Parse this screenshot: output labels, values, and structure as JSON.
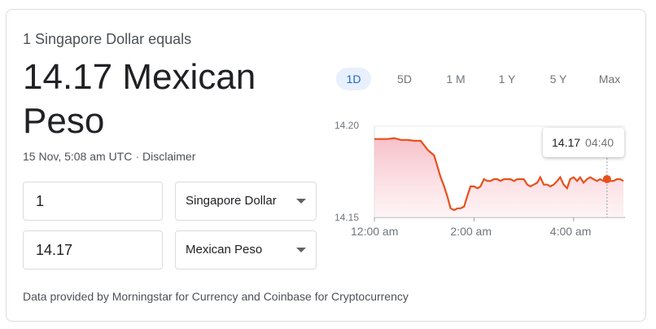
{
  "header": {
    "equals_text": "1 Singapore Dollar equals",
    "result_text": "14.17 Mexican Peso",
    "timestamp": "15 Nov, 5:08 am UTC",
    "disclaimer": "Disclaimer"
  },
  "converter": {
    "from_amount": "1",
    "from_currency": "Singapore Dollar",
    "to_amount": "14.17",
    "to_currency": "Mexican Peso"
  },
  "footer": {
    "text": "Data provided by Morningstar for Currency and Coinbase for Cryptocurrency"
  },
  "ranges": [
    {
      "label": "1D",
      "active": true
    },
    {
      "label": "5D",
      "active": false
    },
    {
      "label": "1 M",
      "active": false
    },
    {
      "label": "1 Y",
      "active": false
    },
    {
      "label": "5 Y",
      "active": false
    },
    {
      "label": "Max",
      "active": false
    }
  ],
  "tooltip": {
    "value": "14.17",
    "time": "04:40"
  },
  "colors": {
    "line": "#e8501b",
    "fill_top": "#f6b9c3",
    "fill_bottom": "#fdecef",
    "active_tab_bg": "#e8f0fe",
    "active_tab_text": "#1967d2"
  },
  "chart_data": {
    "type": "area",
    "ylim": [
      14.15,
      14.2
    ],
    "yticks": [
      "14.20",
      "14.15"
    ],
    "xticks": [
      "12:00 am",
      "2:00 am",
      "4:00 am"
    ],
    "x_hours": [
      0.0,
      0.13,
      0.27,
      0.4,
      0.53,
      0.67,
      0.8,
      0.93,
      1.07,
      1.2,
      1.33,
      1.4,
      1.47,
      1.53,
      1.6,
      1.67,
      1.73,
      1.8,
      1.87,
      1.93,
      2.0,
      2.07,
      2.13,
      2.2,
      2.27,
      2.33,
      2.4,
      2.47,
      2.53,
      2.6,
      2.67,
      2.73,
      2.8,
      2.87,
      2.93,
      3.0,
      3.07,
      3.13,
      3.2,
      3.27,
      3.33,
      3.4,
      3.47,
      3.53,
      3.6,
      3.67,
      3.73,
      3.8,
      3.87,
      3.93,
      4.0,
      4.07,
      4.13,
      4.2,
      4.27,
      4.33,
      4.4,
      4.47,
      4.53,
      4.6,
      4.67,
      4.73,
      4.8,
      4.87,
      4.93,
      5.0
    ],
    "values": [
      14.193,
      14.193,
      14.193,
      14.1935,
      14.1925,
      14.1925,
      14.192,
      14.192,
      14.187,
      14.184,
      14.172,
      14.167,
      14.161,
      14.155,
      14.154,
      14.155,
      14.155,
      14.156,
      14.162,
      14.167,
      14.167,
      14.166,
      14.167,
      14.171,
      14.17,
      14.17,
      14.171,
      14.171,
      14.17,
      14.171,
      14.171,
      14.171,
      14.17,
      14.171,
      14.171,
      14.171,
      14.168,
      14.167,
      14.168,
      14.169,
      14.172,
      14.168,
      14.168,
      14.167,
      14.168,
      14.17,
      14.172,
      14.168,
      14.166,
      14.171,
      14.172,
      14.17,
      14.172,
      14.169,
      14.171,
      14.172,
      14.171,
      14.17,
      14.171,
      14.17,
      14.171,
      14.17,
      14.17,
      14.171,
      14.171,
      14.17
    ],
    "marker_hour": 4.67
  }
}
